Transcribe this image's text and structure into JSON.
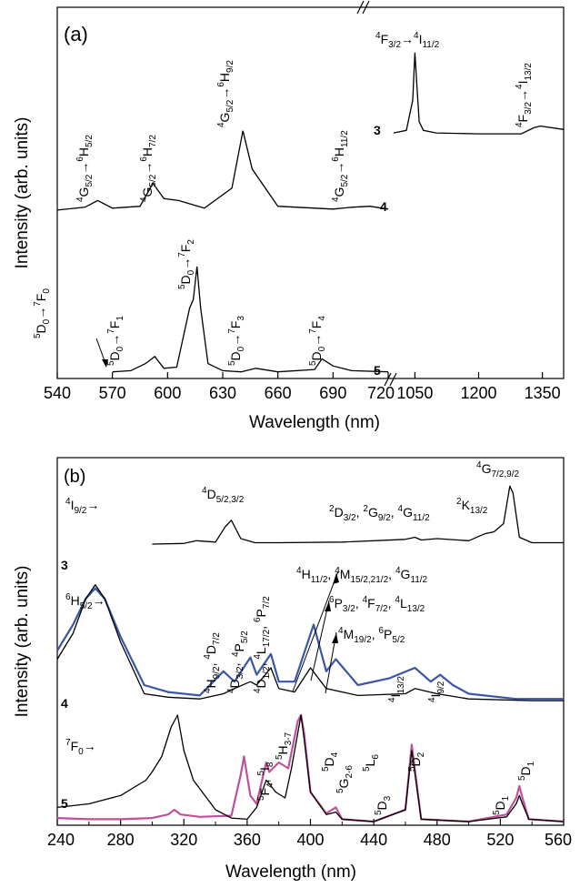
{
  "chart_data": [
    {
      "panel_label": "(a)",
      "type": "line",
      "xlabel": "Wavelength (nm)",
      "ylabel": "Intensity (arb. units)",
      "xlim_left": [
        540,
        720
      ],
      "xlim_right": [
        1000,
        1400
      ],
      "xticks_left": [
        "540",
        "570",
        "600",
        "630",
        "660",
        "690",
        "720"
      ],
      "xticks_right": [
        "1050",
        "1200",
        "1350"
      ],
      "series": [
        {
          "name": "3",
          "x": [
            1000,
            1030,
            1045,
            1050,
            1055,
            1060,
            1070,
            1100,
            1200,
            1300,
            1330,
            1345,
            1400
          ],
          "y": [
            0.02,
            0.05,
            0.4,
            0.95,
            0.55,
            0.15,
            0.05,
            0.02,
            0.01,
            0.01,
            0.08,
            0.1,
            0.06
          ]
        },
        {
          "name": "4",
          "x": [
            540,
            555,
            562,
            570,
            585,
            592,
            598,
            606,
            620,
            635,
            641,
            646,
            660,
            690,
            700,
            710,
            720
          ],
          "y": [
            0.02,
            0.05,
            0.12,
            0.04,
            0.06,
            0.3,
            0.14,
            0.12,
            0.04,
            0.25,
            0.85,
            0.45,
            0.06,
            0.03,
            0.05,
            0.06,
            0.03
          ]
        },
        {
          "name": "5",
          "x": [
            570,
            580,
            588,
            593,
            598,
            605,
            612,
            614,
            616,
            618,
            622,
            630,
            640,
            648,
            660,
            680,
            684,
            690,
            700,
            720
          ],
          "y": [
            0.01,
            0.02,
            0.08,
            0.14,
            0.04,
            0.05,
            0.55,
            0.62,
            0.9,
            0.55,
            0.08,
            0.02,
            0.01,
            0.04,
            0.01,
            0.03,
            0.12,
            0.06,
            0.02,
            0.01
          ]
        }
      ],
      "annotations": [
        {
          "series": "3",
          "base": "4",
          "base_sub": "F",
          "from_sub": "3/2",
          "to_sup": "4",
          "to": "I",
          "to_sub": "11/2"
        },
        {
          "series": "3",
          "base": "4",
          "base_sub": "F",
          "from_sub": "3/2",
          "to_sup": "4",
          "to": "I",
          "to_sub": "13/2"
        },
        {
          "series": "4",
          "text": "4G5/2→6H5/2"
        },
        {
          "series": "4",
          "text": "4G5/2→6H7/2"
        },
        {
          "series": "4",
          "text": "4G5/2→6H9/2"
        },
        {
          "series": "4",
          "text": "4G5/2→6H11/2"
        },
        {
          "series": "5",
          "text": "5D0→7F0"
        },
        {
          "series": "5",
          "text": "5D0→7F1"
        },
        {
          "series": "5",
          "text": "5D0→7F2"
        },
        {
          "series": "5",
          "text": "5D0→7F3"
        },
        {
          "series": "5",
          "text": "5D0→7F4"
        }
      ]
    },
    {
      "panel_label": "(b)",
      "type": "line",
      "xlabel": "Wavelength (nm)",
      "ylabel": "Intensity (arb. units)",
      "xlim": [
        240,
        560
      ],
      "xticks": [
        "240",
        "280",
        "320",
        "360",
        "400",
        "440",
        "480",
        "520",
        "560"
      ],
      "series": [
        {
          "name": "3",
          "color": "#000000",
          "x": [
            300,
            320,
            328,
            340,
            346,
            350,
            356,
            365,
            380,
            420,
            460,
            466,
            470,
            480,
            500,
            510,
            516,
            522,
            526,
            528,
            532,
            540,
            560
          ],
          "y": [
            0.0,
            0.01,
            0.05,
            0.03,
            0.25,
            0.35,
            0.08,
            0.02,
            0.02,
            0.03,
            0.07,
            0.1,
            0.06,
            0.08,
            0.05,
            0.15,
            0.18,
            0.3,
            0.85,
            0.75,
            0.1,
            0.02,
            0.02
          ]
        },
        {
          "name": "4",
          "color": "#000000",
          "x": [
            240,
            250,
            258,
            264,
            270,
            280,
            295,
            310,
            330,
            345,
            352,
            362,
            366,
            375,
            380,
            390,
            400,
            410,
            430,
            460,
            466,
            480,
            500,
            540,
            560
          ],
          "y": [
            0.25,
            0.4,
            0.6,
            0.68,
            0.6,
            0.35,
            0.05,
            0.03,
            0.02,
            0.05,
            0.08,
            0.12,
            0.1,
            0.2,
            0.08,
            0.06,
            0.2,
            0.08,
            0.04,
            0.05,
            0.08,
            0.05,
            0.02,
            0.01,
            0.01
          ]
        },
        {
          "name": "4",
          "color": "#3b56a8",
          "x": [
            240,
            250,
            258,
            264,
            270,
            280,
            295,
            310,
            330,
            345,
            352,
            362,
            366,
            375,
            380,
            390,
            402,
            410,
            416,
            430,
            450,
            466,
            476,
            482,
            490,
            500,
            530,
            560
          ],
          "y": [
            0.3,
            0.45,
            0.6,
            0.66,
            0.6,
            0.38,
            0.1,
            0.06,
            0.04,
            0.18,
            0.12,
            0.26,
            0.16,
            0.28,
            0.12,
            0.12,
            0.45,
            0.18,
            0.25,
            0.1,
            0.14,
            0.2,
            0.12,
            0.16,
            0.1,
            0.05,
            0.02,
            0.02
          ]
        },
        {
          "name": "5",
          "color": "#000000",
          "x": [
            240,
            260,
            280,
            296,
            300,
            306,
            312,
            316,
            320,
            326,
            340,
            350,
            360,
            366,
            372,
            374,
            378,
            384,
            388,
            392,
            394,
            396,
            400,
            410,
            416,
            420,
            440,
            460,
            464,
            470,
            500,
            524,
            530,
            532,
            534,
            538,
            560
          ],
          "y": [
            0.12,
            0.15,
            0.22,
            0.35,
            0.42,
            0.55,
            0.8,
            0.9,
            0.6,
            0.35,
            0.1,
            0.03,
            0.02,
            0.12,
            0.35,
            0.32,
            0.25,
            0.2,
            0.45,
            0.75,
            0.9,
            0.7,
            0.25,
            0.06,
            0.08,
            0.02,
            0.0,
            0.1,
            0.6,
            0.02,
            0.0,
            0.04,
            0.15,
            0.22,
            0.15,
            0.02,
            0.0
          ]
        },
        {
          "name": "5",
          "color": "#c0509a",
          "x": [
            240,
            260,
            280,
            300,
            310,
            314,
            318,
            330,
            350,
            356,
            358,
            362,
            366,
            372,
            374,
            380,
            386,
            392,
            394,
            396,
            400,
            410,
            416,
            420,
            440,
            460,
            464,
            470,
            500,
            524,
            530,
            532,
            534,
            538,
            560
          ],
          "y": [
            0.03,
            0.02,
            0.02,
            0.03,
            0.06,
            0.1,
            0.06,
            0.04,
            0.05,
            0.4,
            0.55,
            0.22,
            0.15,
            0.5,
            0.42,
            0.5,
            0.45,
            0.85,
            0.9,
            0.75,
            0.25,
            0.07,
            0.12,
            0.02,
            0.0,
            0.1,
            0.65,
            0.02,
            0.0,
            0.06,
            0.2,
            0.3,
            0.2,
            0.02,
            0.0
          ]
        }
      ],
      "annotations": [
        {
          "series": "3",
          "text": "4I9/2→"
        },
        {
          "series": "3",
          "text": "4D5/2,3/2"
        },
        {
          "series": "3",
          "text": "2D3/2, 2G9/2, 4G11/2"
        },
        {
          "series": "3",
          "text": "2K13/2"
        },
        {
          "series": "3",
          "text": "4G7/2,9/2"
        },
        {
          "series": "4",
          "text": "6H5/2→"
        },
        {
          "series": "4",
          "text": "4H11/2, 4M15/2,21/2, 4G11/2"
        },
        {
          "series": "4",
          "text": "6P3/2, 4F7/2, 4L13/2"
        },
        {
          "series": "4",
          "text": "4M19/2, 6P5/2"
        },
        {
          "series": "4",
          "text": "4H9/2, 4D7/2, 4P5/2"
        },
        {
          "series": "4",
          "text": "4D3/2, 4D1/2, 4L17/2, 6P7/2"
        },
        {
          "series": "4",
          "text": "4I13/2"
        },
        {
          "series": "4",
          "text": "4I9/2"
        },
        {
          "series": "5",
          "text": "7F0→"
        },
        {
          "series": "5",
          "text": "5F4, 5I8"
        },
        {
          "series": "5",
          "text": "5H3-7"
        },
        {
          "series": "5",
          "text": "5D4"
        },
        {
          "series": "5",
          "text": "5G2-6"
        },
        {
          "series": "5",
          "text": "5L6"
        },
        {
          "series": "5",
          "text": "5D3"
        },
        {
          "series": "5",
          "text": "5D2"
        },
        {
          "series": "5",
          "text": "5D1"
        },
        {
          "series": "5",
          "text": "5D1"
        }
      ]
    }
  ]
}
